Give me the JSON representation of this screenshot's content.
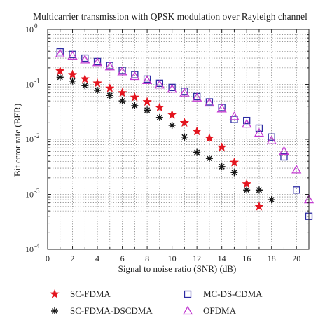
{
  "chart_data": {
    "type": "scatter",
    "title": "Multicarrier transmission with QPSK modulation over Rayleigh channel",
    "xlabel": "Signal to noise ratio (SNR) (dB)",
    "ylabel": "Bit error rate (BER)",
    "xlim": [
      0,
      21
    ],
    "ylim": [
      0.0001,
      1
    ],
    "yscale": "log",
    "grid": true,
    "legend_position": "bottom",
    "x_ticks": [
      "0",
      "2",
      "4",
      "6",
      "8",
      "10",
      "12",
      "14",
      "16",
      "18",
      "20"
    ],
    "y_ticks": [
      {
        "base": "10",
        "exp": "0"
      },
      {
        "base": "10",
        "exp": "-1"
      },
      {
        "base": "10",
        "exp": "-2"
      },
      {
        "base": "10",
        "exp": "-3"
      },
      {
        "base": "10",
        "exp": "-4"
      }
    ],
    "series": [
      {
        "name": "SC-FDMA",
        "marker": "star",
        "color": "#e3141e",
        "x": [
          1,
          2,
          3,
          4,
          5,
          6,
          7,
          8,
          9,
          10,
          11,
          12,
          13,
          14,
          15,
          16,
          17
        ],
        "y": [
          0.175,
          0.15,
          0.125,
          0.105,
          0.085,
          0.07,
          0.058,
          0.048,
          0.038,
          0.028,
          0.02,
          0.014,
          0.0105,
          0.0072,
          0.0038,
          0.00155,
          0.0006
        ]
      },
      {
        "name": "SC-FDMA-DSCDMA",
        "marker": "asterisk",
        "color": "#111111",
        "x": [
          1,
          2,
          3,
          4,
          5,
          6,
          7,
          8,
          9,
          10,
          11,
          12,
          13,
          14,
          15,
          16,
          17,
          18
        ],
        "y": [
          0.135,
          0.115,
          0.095,
          0.078,
          0.063,
          0.05,
          0.041,
          0.034,
          0.025,
          0.018,
          0.011,
          0.0058,
          0.0045,
          0.0032,
          0.0025,
          0.0012,
          0.0012,
          0.0008
        ]
      },
      {
        "name": "MC-DS-CDMA",
        "marker": "square",
        "color": "#2d2ba3",
        "x": [
          1,
          2,
          3,
          4,
          5,
          6,
          7,
          8,
          9,
          10,
          11,
          12,
          13,
          14,
          15,
          16,
          17,
          18,
          19,
          20,
          21
        ],
        "y": [
          0.39,
          0.35,
          0.3,
          0.26,
          0.22,
          0.18,
          0.15,
          0.125,
          0.105,
          0.088,
          0.075,
          0.06,
          0.048,
          0.038,
          0.023,
          0.022,
          0.016,
          0.011,
          0.0048,
          0.0012,
          0.0004
        ]
      },
      {
        "name": "OFDMA",
        "marker": "triangle",
        "color": "#c23bd1",
        "x": [
          1,
          2,
          3,
          4,
          5,
          6,
          7,
          8,
          9,
          10,
          11,
          12,
          13,
          14,
          15,
          16,
          17,
          18,
          19,
          20,
          21
        ],
        "y": [
          0.36,
          0.33,
          0.28,
          0.25,
          0.21,
          0.17,
          0.14,
          0.118,
          0.098,
          0.082,
          0.07,
          0.057,
          0.046,
          0.036,
          0.026,
          0.019,
          0.013,
          0.0095,
          0.0061,
          0.0028,
          0.0008
        ]
      }
    ]
  }
}
